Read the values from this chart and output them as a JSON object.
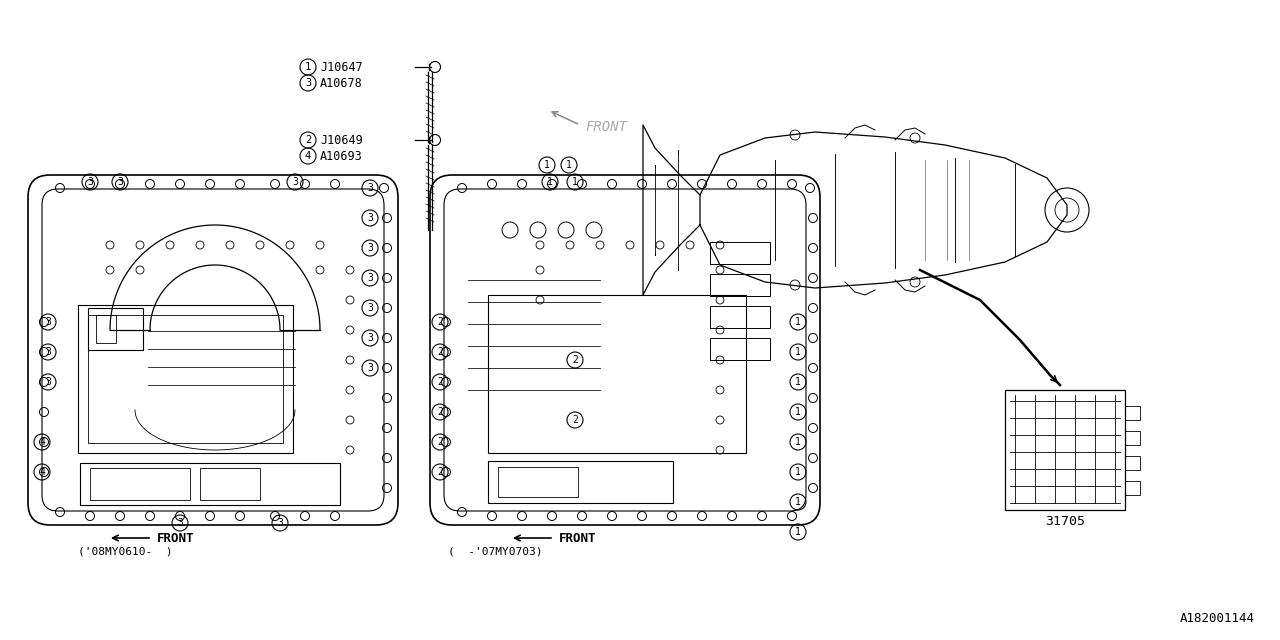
{
  "bg_color": "#ffffff",
  "line_color": "#000000",
  "bolt1_num": "1",
  "bolt1_code": "J10647",
  "bolt1b_num": "3",
  "bolt1b_code": "A10678",
  "bolt2_num": "2",
  "bolt2_code": "J10649",
  "bolt2b_num": "4",
  "bolt2b_code": "A10693",
  "part_31705": "31705",
  "ref_code": "A182001144",
  "front_label": "FRONT",
  "caption_left": "('08MY0610-  )",
  "caption_right": "(  -'07MY0703)"
}
